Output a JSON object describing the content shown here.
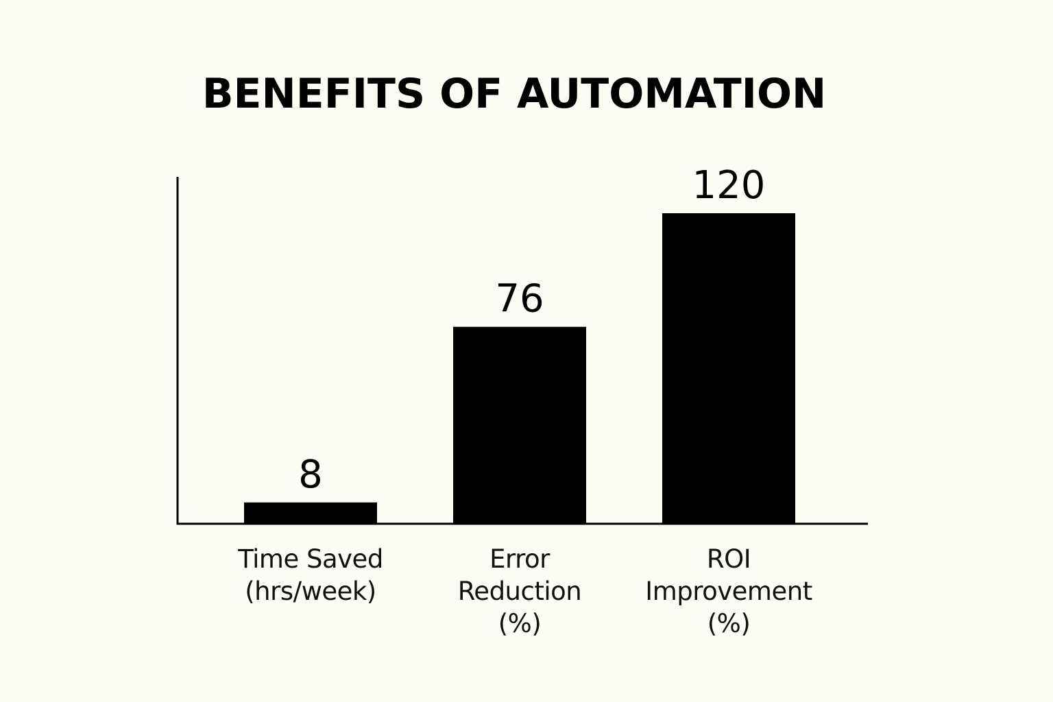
{
  "chart_data": {
    "type": "bar",
    "title": "BENEFITS OF AUTOMATION",
    "categories": [
      "Time Saved\n(hrs/week)",
      "Error\nReduction\n(%)",
      "ROI\nImprovement\n(%)"
    ],
    "values": [
      8,
      76,
      120
    ],
    "color": "#000000"
  }
}
